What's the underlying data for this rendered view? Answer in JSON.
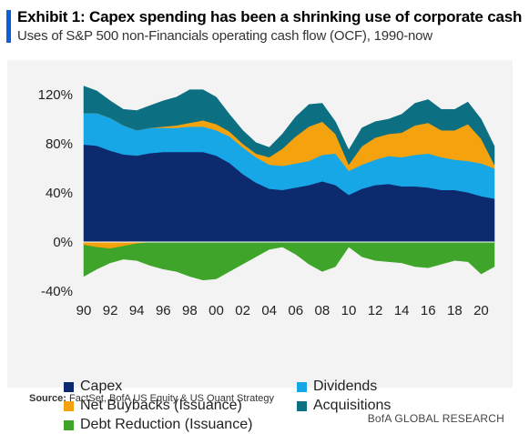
{
  "header": {
    "title": "Exhibit 1: Capex spending has been a shrinking use of corporate cash",
    "subtitle": "Uses of S&P 500 non-Financials operating cash flow (OCF), 1990-now"
  },
  "footer": {
    "source_label": "Source:",
    "source_text": "FactSet, BofA US Equity & US Quant Strategy",
    "brand": "BofA GLOBAL RESEARCH"
  },
  "colors": {
    "capex": "#0d2a6e",
    "dividends": "#17a6e6",
    "buybacks": "#f5a20f",
    "acquisitions": "#0c6f82",
    "debt_reduction": "#3ea52a",
    "accent": "#0b5fd7",
    "panel_background": "#f3f3f3"
  },
  "chart_data": {
    "type": "area",
    "stacked": true,
    "units": "% of operating cash flow",
    "x": [
      1990,
      1991,
      1992,
      1993,
      1994,
      1995,
      1996,
      1997,
      1998,
      1999,
      2000,
      2001,
      2002,
      2003,
      2004,
      2005,
      2006,
      2007,
      2008,
      2009,
      2010,
      2011,
      2012,
      2013,
      2014,
      2015,
      2016,
      2017,
      2018,
      2019,
      2020,
      2021
    ],
    "x_tick_labels": [
      "90",
      "92",
      "94",
      "96",
      "98",
      "00",
      "02",
      "04",
      "06",
      "08",
      "10",
      "12",
      "14",
      "16",
      "18",
      "20"
    ],
    "y_tick_labels": [
      "120%",
      "80%",
      "40%",
      "0%",
      "-40%"
    ],
    "ylim": [
      -40,
      130
    ],
    "legend_position": "bottom",
    "series": [
      {
        "name": "Capex",
        "color_key": "capex",
        "values": [
          79,
          78,
          74,
          71,
          70,
          72,
          73,
          73,
          73,
          73,
          70,
          64,
          55,
          48,
          43,
          42,
          44,
          46,
          49,
          46,
          38,
          43,
          46,
          47,
          45,
          45,
          44,
          42,
          42,
          40,
          37,
          35
        ]
      },
      {
        "name": "Dividends",
        "color_key": "dividends",
        "values": [
          26,
          27,
          27,
          24,
          21,
          21,
          20,
          20,
          21,
          21,
          21,
          22,
          22,
          21,
          20,
          20,
          20,
          20,
          22,
          26,
          20,
          20,
          21,
          23,
          24,
          26,
          28,
          27,
          25,
          26,
          27,
          25
        ]
      },
      {
        "name": "Net Buybacks (Issuance)",
        "color_key": "buybacks",
        "values": [
          -2,
          -4,
          -5,
          -3,
          -1,
          0,
          1,
          2,
          3,
          5,
          5,
          4,
          3,
          3,
          6,
          14,
          22,
          28,
          27,
          16,
          5,
          15,
          18,
          18,
          20,
          24,
          25,
          22,
          24,
          30,
          20,
          3
        ]
      },
      {
        "name": "Acquisitions",
        "color_key": "acquisitions",
        "values": [
          22,
          18,
          14,
          13,
          16,
          18,
          21,
          23,
          27,
          25,
          22,
          14,
          11,
          9,
          8,
          12,
          16,
          18,
          15,
          10,
          12,
          15,
          13,
          12,
          15,
          18,
          19,
          17,
          17,
          18,
          16,
          15
        ]
      },
      {
        "name": "Debt Reduction (Issuance)",
        "color_key": "debt_reduction",
        "values": [
          -28,
          -22,
          -17,
          -14,
          -15,
          -19,
          -22,
          -24,
          -28,
          -31,
          -30,
          -24,
          -18,
          -12,
          -6,
          -4,
          -10,
          -18,
          -24,
          -20,
          -4,
          -12,
          -15,
          -16,
          -17,
          -20,
          -21,
          -18,
          -15,
          -16,
          -26,
          -20
        ]
      }
    ]
  }
}
